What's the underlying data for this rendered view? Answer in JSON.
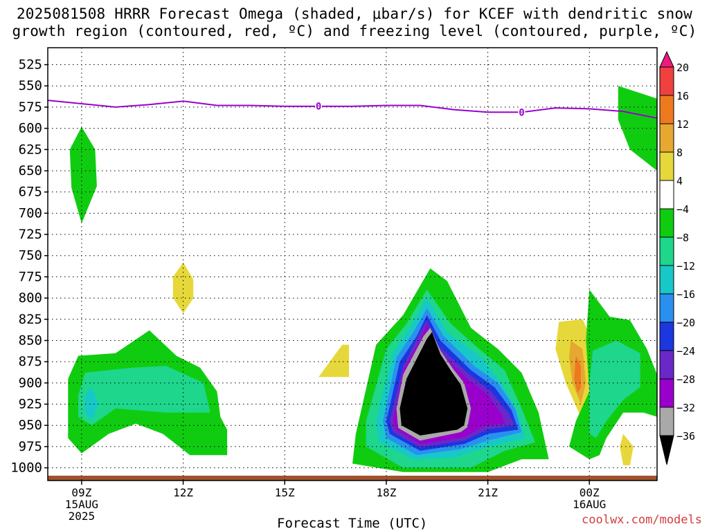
{
  "header": {
    "title_line1": "2025081508 HRRR Forecast Omega (shaded, μbar/s) for KCEF with dendritic snow",
    "title_line2": "growth region (contoured, red, ºC) and freezing level (contoured, purple, ºC)"
  },
  "footer": {
    "credit": "coolwx.com/models",
    "xlabel": "Forecast Time (UTC)"
  },
  "chart_data": {
    "type": "heatmap",
    "variable": "Omega",
    "units": "μbar/s",
    "y_axis": {
      "ticks": [
        525,
        550,
        575,
        600,
        625,
        650,
        675,
        700,
        725,
        750,
        775,
        800,
        825,
        850,
        875,
        900,
        925,
        950,
        975,
        1000
      ],
      "inverted": true,
      "range": [
        505,
        1015
      ]
    },
    "x_axis": {
      "ticks": [
        {
          "hour": 9,
          "lines": [
            "09Z",
            "15AUG",
            "2025"
          ]
        },
        {
          "hour": 12,
          "lines": [
            "12Z"
          ]
        },
        {
          "hour": 15,
          "lines": [
            "15Z"
          ]
        },
        {
          "hour": 18,
          "lines": [
            "18Z"
          ]
        },
        {
          "hour": 21,
          "lines": [
            "21Z"
          ]
        },
        {
          "hour": 24,
          "lines": [
            "00Z",
            "16AUG"
          ]
        }
      ],
      "range_hours": [
        8,
        26
      ]
    },
    "grid": true,
    "colorbar": {
      "levels": [
        -36,
        -32,
        -28,
        -24,
        -20,
        -16,
        -12,
        -8,
        -4,
        4,
        8,
        12,
        16,
        20
      ],
      "labels": [
        "20",
        "16",
        "12",
        "8",
        "4",
        "−4",
        "−8",
        "−12",
        "−16",
        "−20",
        "−24",
        "−28",
        "−32",
        "−36"
      ],
      "colors": {
        "lt-36": "#000000",
        "-36..-32": "#a9a9a9",
        "-32..-28": "#9a00cc",
        "-28..-24": "#6a28c8",
        "-24..-20": "#1c36e0",
        "-20..-16": "#2a90f0",
        "-16..-12": "#18c8c8",
        "-12..-8": "#1ed68c",
        "-8..-4": "#10cc10",
        "-4..4": "#ffffff",
        "4..8": "#e6d83a",
        "8..12": "#e6a830",
        "12..16": "#ee7a20",
        "16..20": "#f04040",
        "gt20": "#ee1a80"
      }
    },
    "freezing_level": {
      "label": "0",
      "color": "#9a00cc",
      "points": [
        [
          8,
          567
        ],
        [
          9,
          571
        ],
        [
          10,
          575
        ],
        [
          11,
          572
        ],
        [
          12,
          568
        ],
        [
          13,
          573
        ],
        [
          14,
          573
        ],
        [
          15,
          574
        ],
        [
          16,
          574
        ],
        [
          17,
          574
        ],
        [
          18,
          573
        ],
        [
          19,
          573
        ],
        [
          20,
          578
        ],
        [
          21,
          581
        ],
        [
          22,
          581
        ],
        [
          23,
          576
        ],
        [
          24,
          577
        ],
        [
          25,
          580
        ],
        [
          26,
          588
        ]
      ]
    },
    "ground_color": "#a0522d"
  }
}
